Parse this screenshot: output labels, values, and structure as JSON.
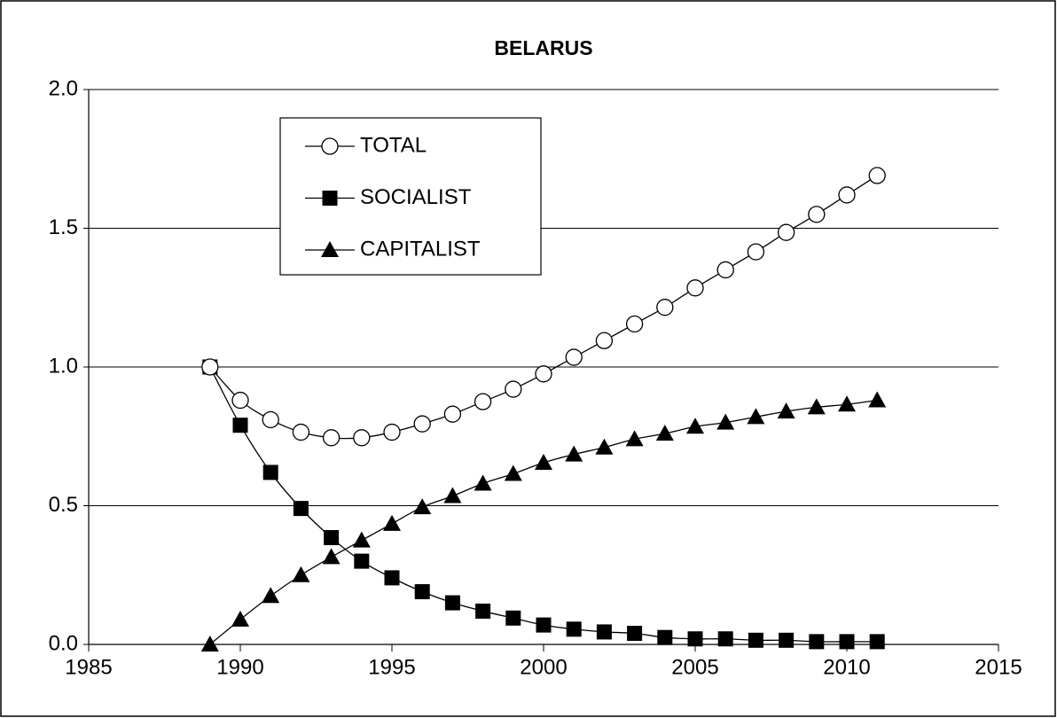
{
  "chart_data": {
    "type": "line",
    "title": "BELARUS",
    "x": [
      1989,
      1990,
      1991,
      1992,
      1993,
      1994,
      1995,
      1996,
      1997,
      1998,
      1999,
      2000,
      2001,
      2002,
      2003,
      2004,
      2005,
      2006,
      2007,
      2008,
      2009,
      2010,
      2011
    ],
    "series": [
      {
        "name": "TOTAL",
        "color": "#000000",
        "marker": "open-circle",
        "values": [
          1.0,
          0.88,
          0.81,
          0.765,
          0.745,
          0.745,
          0.765,
          0.795,
          0.83,
          0.875,
          0.92,
          0.975,
          1.035,
          1.095,
          1.155,
          1.215,
          1.285,
          1.35,
          1.415,
          1.485,
          1.55,
          1.62,
          1.69
        ]
      },
      {
        "name": "SOCIALIST",
        "color": "#000000",
        "marker": "square",
        "values": [
          1.0,
          0.79,
          0.62,
          0.49,
          0.385,
          0.3,
          0.24,
          0.19,
          0.15,
          0.12,
          0.095,
          0.07,
          0.055,
          0.045,
          0.04,
          0.025,
          0.02,
          0.02,
          0.015,
          0.015,
          0.01,
          0.01,
          0.01
        ]
      },
      {
        "name": "CAPITALIST",
        "color": "#000000",
        "marker": "triangle",
        "values": [
          0.0,
          0.09,
          0.175,
          0.25,
          0.315,
          0.375,
          0.435,
          0.495,
          0.535,
          0.58,
          0.615,
          0.655,
          0.685,
          0.71,
          0.74,
          0.76,
          0.785,
          0.8,
          0.82,
          0.84,
          0.855,
          0.865,
          0.88
        ]
      }
    ],
    "xlim": [
      1985,
      2015
    ],
    "xticks": [
      1985,
      1990,
      1995,
      2000,
      2005,
      2010,
      2015
    ],
    "ylim": [
      0,
      2
    ],
    "yticks": [
      {
        "value": 0,
        "label": "0.0"
      },
      {
        "value": 0.5,
        "label": "0.5"
      },
      {
        "value": 1,
        "label": "1.0"
      },
      {
        "value": 1.5,
        "label": "1.5"
      },
      {
        "value": 2,
        "label": "2.0"
      }
    ],
    "grid": true,
    "legend": "upper left"
  }
}
